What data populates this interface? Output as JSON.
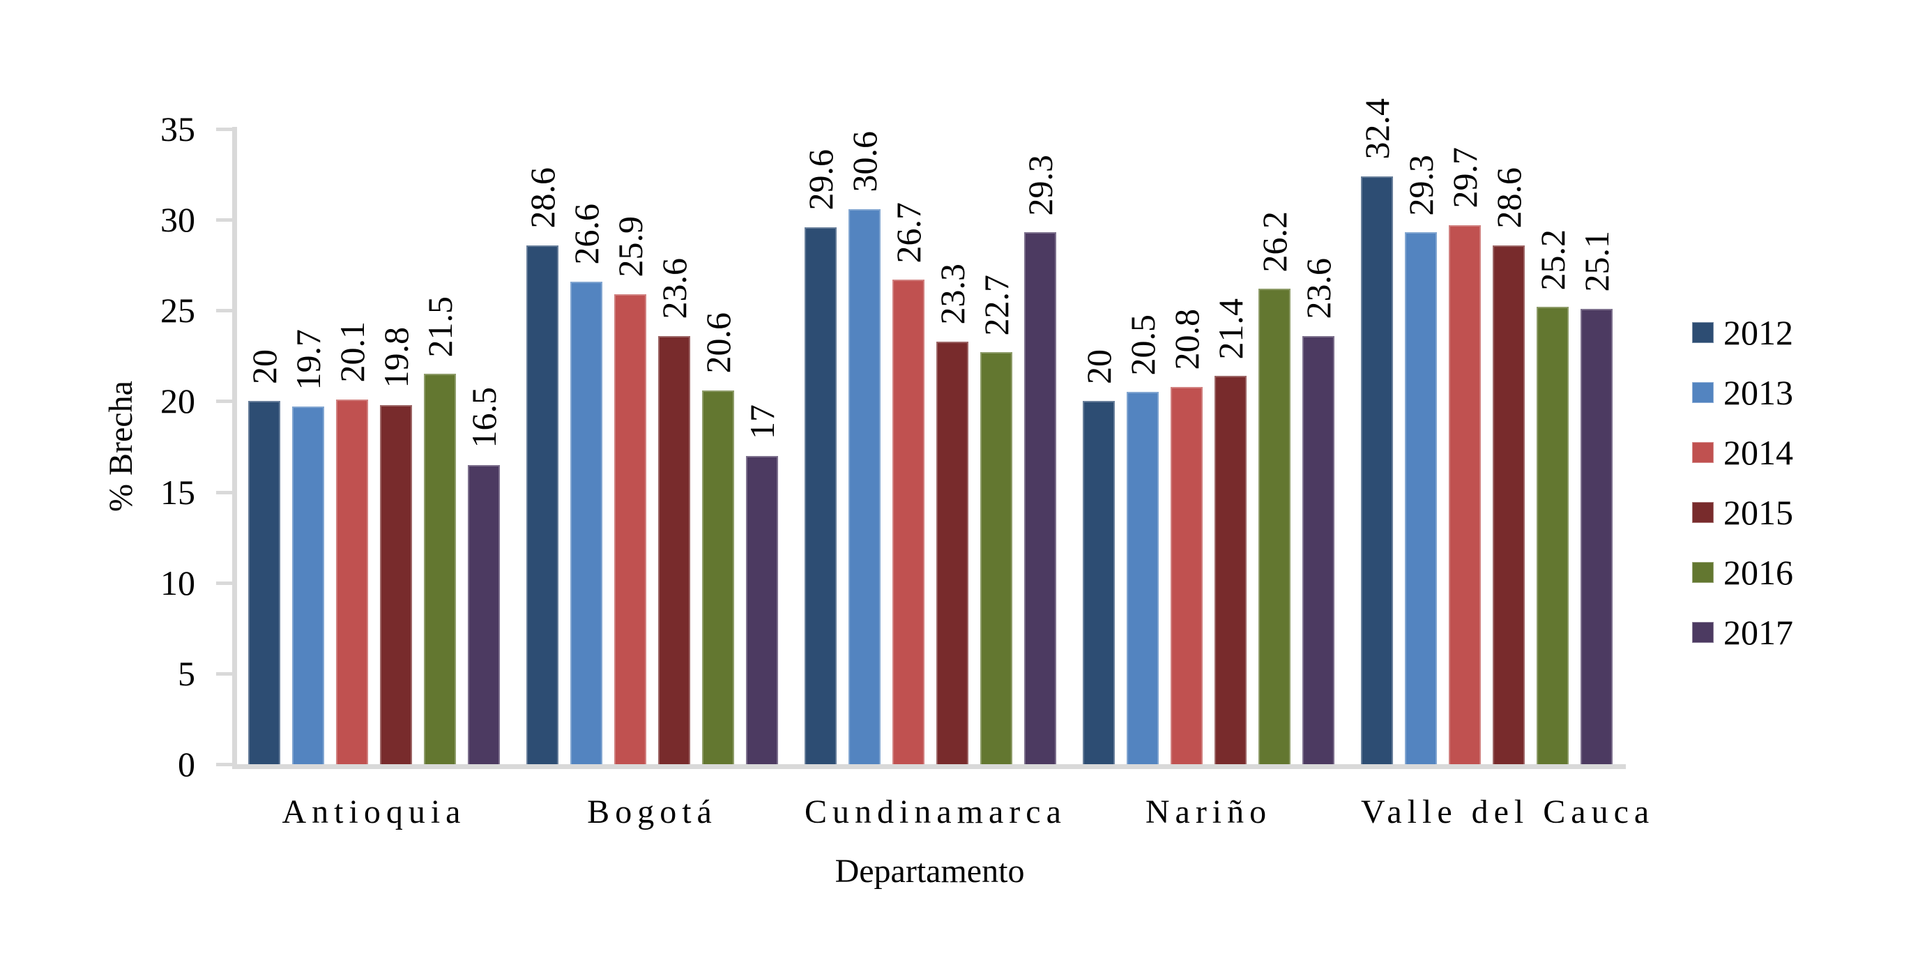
{
  "chart_data": {
    "type": "bar",
    "title": "",
    "xlabel": "Departamento",
    "ylabel": "% Brecha",
    "categories": [
      "Antioquia",
      "Bogotá",
      "Cundinamarca",
      "Nariño",
      "Valle del Cauca"
    ],
    "series": [
      {
        "name": "2012",
        "color": "#2d4d73",
        "values": [
          20,
          28.6,
          29.6,
          20,
          32.4
        ]
      },
      {
        "name": "2013",
        "color": "#5384c0",
        "values": [
          19.7,
          26.6,
          30.6,
          20.5,
          29.3
        ]
      },
      {
        "name": "2014",
        "color": "#c05150",
        "values": [
          20.1,
          25.9,
          26.7,
          20.8,
          29.7
        ]
      },
      {
        "name": "2015",
        "color": "#782b2c",
        "values": [
          19.8,
          23.6,
          23.3,
          21.4,
          28.6
        ]
      },
      {
        "name": "2016",
        "color": "#637730",
        "values": [
          21.5,
          20.6,
          22.7,
          26.2,
          25.2
        ]
      },
      {
        "name": "2017",
        "color": "#4c3a61",
        "values": [
          16.5,
          17,
          29.3,
          23.6,
          25.1
        ]
      }
    ],
    "ylim": [
      0,
      35
    ],
    "yticks": [
      0,
      5,
      10,
      15,
      20,
      25,
      30,
      35
    ],
    "grid": false,
    "legend_position": "right",
    "axis_color": "#d9d9d9",
    "text_color": "#000000",
    "data_labels_rotated": true
  }
}
